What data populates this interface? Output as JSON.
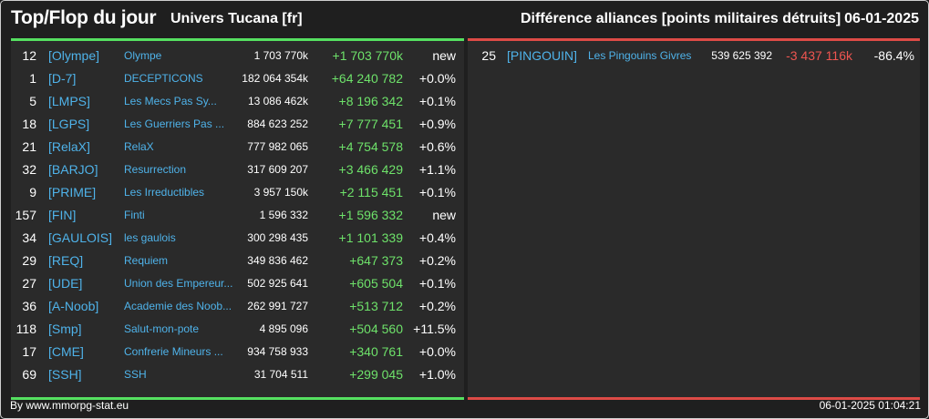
{
  "header": {
    "title": "Top/Flop du jour",
    "universe": "Univers Tucana [fr]",
    "subtitle": "Différence alliances [points militaires détruits]",
    "date": "06-01-2025"
  },
  "top": [
    {
      "rank": "12",
      "tag": "[Olympe]",
      "name": "Olympe",
      "points": "1 703 770k",
      "delta": "+1 703 770k",
      "pct": "new"
    },
    {
      "rank": "1",
      "tag": "[D-7]",
      "name": "DECEPTICONS",
      "points": "182 064 354k",
      "delta": "+64 240 782",
      "pct": "+0.0%"
    },
    {
      "rank": "5",
      "tag": "[LMPS]",
      "name": "Les Mecs Pas Sy...",
      "points": "13 086 462k",
      "delta": "+8 196 342",
      "pct": "+0.1%"
    },
    {
      "rank": "18",
      "tag": "[LGPS]",
      "name": "Les Guerriers Pas ...",
      "points": "884 623 252",
      "delta": "+7 777 451",
      "pct": "+0.9%"
    },
    {
      "rank": "21",
      "tag": "[RelaX]",
      "name": "RelaX",
      "points": "777 982 065",
      "delta": "+4 754 578",
      "pct": "+0.6%"
    },
    {
      "rank": "32",
      "tag": "[BARJO]",
      "name": "Resurrection",
      "points": "317 609 207",
      "delta": "+3 466 429",
      "pct": "+1.1%"
    },
    {
      "rank": "9",
      "tag": "[PRIME]",
      "name": "Les Irreductibles",
      "points": "3 957 150k",
      "delta": "+2 115 451",
      "pct": "+0.1%"
    },
    {
      "rank": "157",
      "tag": "[FIN]",
      "name": "Finti",
      "points": "1 596 332",
      "delta": "+1 596 332",
      "pct": "new"
    },
    {
      "rank": "34",
      "tag": "[GAULOIS]",
      "name": "les gaulois",
      "points": "300 298 435",
      "delta": "+1 101 339",
      "pct": "+0.4%"
    },
    {
      "rank": "29",
      "tag": "[REQ]",
      "name": "Requiem",
      "points": "349 836 462",
      "delta": "+647 373",
      "pct": "+0.2%"
    },
    {
      "rank": "27",
      "tag": "[UDE]",
      "name": "Union des Empereur...",
      "points": "502 925 641",
      "delta": "+605 504",
      "pct": "+0.1%"
    },
    {
      "rank": "36",
      "tag": "[A-Noob]",
      "name": "Academie des Noob...",
      "points": "262 991 727",
      "delta": "+513 712",
      "pct": "+0.2%"
    },
    {
      "rank": "118",
      "tag": "[Smp]",
      "name": "Salut-mon-pote",
      "points": "4 895 096",
      "delta": "+504 560",
      "pct": "+11.5%"
    },
    {
      "rank": "17",
      "tag": "[CME]",
      "name": "Confrerie Mineurs ...",
      "points": "934 758 933",
      "delta": "+340 761",
      "pct": "+0.0%"
    },
    {
      "rank": "69",
      "tag": "[SSH]",
      "name": "SSH",
      "points": "31 704 511",
      "delta": "+299 045",
      "pct": "+1.0%"
    }
  ],
  "flop": [
    {
      "rank": "25",
      "tag": "[PINGOUIN]",
      "name": "Les Pingouins Givres",
      "points": "539 625 392",
      "delta": "-3 437 116k",
      "pct": "-86.4%"
    }
  ],
  "footer": {
    "source": "By www.mmorpg-stat.eu",
    "timestamp": "06-01-2025 01:04:21"
  },
  "colors": {
    "top_accent": "#55e060",
    "flop_accent": "#dd4b46",
    "link": "#4fb3ea"
  }
}
